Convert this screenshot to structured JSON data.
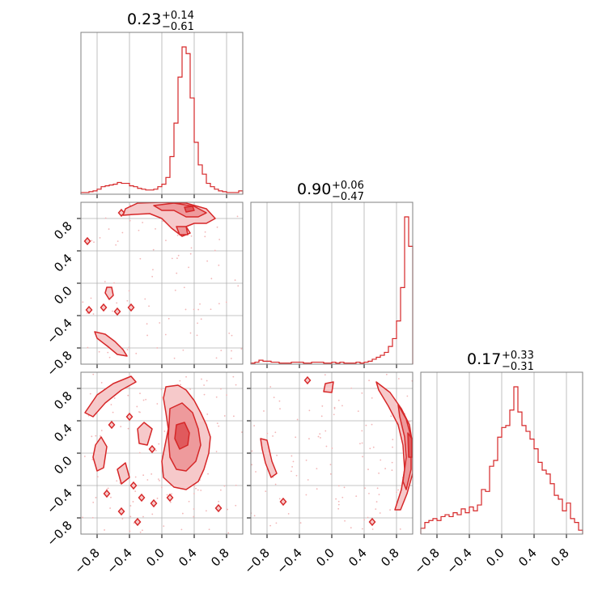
{
  "colors": {
    "line": "#d62728",
    "fill_outer": "#f6c9ca",
    "fill_mid": "#ee9a9c",
    "fill_inner": "#e05a5d",
    "scatter": "#f2b5b6",
    "grid": "#b0b0b0",
    "frame": "#808080"
  },
  "chart_data": {
    "type": "corner",
    "grid": true,
    "tick_labels": [
      "−0.8",
      "−0.4",
      "0.0",
      "0.4",
      "0.8"
    ],
    "tick_values": [
      -0.8,
      -0.4,
      0.0,
      0.4,
      0.8
    ],
    "range": [
      -1.0,
      1.0
    ],
    "titles": [
      {
        "value": "0.23",
        "upper": "+0.14",
        "lower": "−0.61"
      },
      {
        "value": "0.90",
        "upper": "+0.06",
        "lower": "−0.47"
      },
      {
        "value": "0.17",
        "upper": "+0.33",
        "lower": "−0.31"
      }
    ],
    "histograms": [
      {
        "name": "p0",
        "bins_from": -1.0,
        "bins_to": 1.0,
        "values": [
          2,
          2,
          3,
          4,
          6,
          9,
          10,
          11,
          12,
          14,
          13,
          13,
          10,
          9,
          7,
          6,
          5,
          5,
          6,
          9,
          12,
          20,
          45,
          85,
          140,
          176,
          168,
          115,
          62,
          35,
          24,
          13,
          9,
          6,
          4,
          3,
          2,
          2,
          2,
          4
        ]
      },
      {
        "name": "p1",
        "bins_from": -1.0,
        "bins_to": 1.0,
        "values": [
          1,
          2,
          4,
          3,
          3,
          2,
          2,
          1,
          1,
          1,
          2,
          2,
          2,
          1,
          1,
          2,
          2,
          2,
          1,
          1,
          2,
          1,
          2,
          1,
          1,
          1,
          2,
          1,
          2,
          3,
          5,
          7,
          9,
          12,
          18,
          26,
          44,
          78,
          150,
          120
        ]
      },
      {
        "name": "p2",
        "bins_from": -1.0,
        "bins_to": 1.0,
        "values": [
          3,
          6,
          7,
          8,
          7,
          9,
          10,
          9,
          11,
          10,
          13,
          11,
          14,
          12,
          15,
          23,
          22,
          35,
          38,
          50,
          55,
          56,
          64,
          76,
          63,
          56,
          53,
          49,
          44,
          37,
          33,
          31,
          26,
          20,
          18,
          12,
          16,
          8,
          6,
          2
        ]
      }
    ],
    "panels_2d": [
      {
        "x": "p0",
        "y": "p1",
        "outer_regions": [
          {
            "points": [
              [
                -0.45,
                0.92
              ],
              [
                -0.3,
                0.99
              ],
              [
                0.0,
                1.0
              ],
              [
                0.3,
                0.99
              ],
              [
                0.55,
                0.92
              ],
              [
                0.66,
                0.8
              ],
              [
                0.55,
                0.74
              ],
              [
                0.4,
                0.74
              ],
              [
                0.3,
                0.7
              ],
              [
                0.35,
                0.62
              ],
              [
                0.25,
                0.58
              ],
              [
                0.12,
                0.68
              ],
              [
                0.0,
                0.8
              ],
              [
                -0.15,
                0.86
              ],
              [
                -0.35,
                0.85
              ],
              [
                -0.48,
                0.84
              ]
            ]
          },
          {
            "points": [
              [
                -0.83,
                -0.6
              ],
              [
                -0.7,
                -0.63
              ],
              [
                -0.58,
                -0.72
              ],
              [
                -0.48,
                -0.82
              ],
              [
                -0.43,
                -0.9
              ],
              [
                -0.55,
                -0.88
              ],
              [
                -0.67,
                -0.78
              ],
              [
                -0.8,
                -0.68
              ]
            ]
          },
          {
            "points": [
              [
                -0.68,
                -0.05
              ],
              [
                -0.62,
                -0.05
              ],
              [
                -0.6,
                -0.15
              ],
              [
                -0.65,
                -0.2
              ],
              [
                -0.7,
                -0.12
              ]
            ]
          }
        ],
        "mid_regions": [
          {
            "points": [
              [
                -0.1,
                0.96
              ],
              [
                0.15,
                0.99
              ],
              [
                0.4,
                0.95
              ],
              [
                0.55,
                0.87
              ],
              [
                0.45,
                0.82
              ],
              [
                0.3,
                0.82
              ],
              [
                0.15,
                0.9
              ],
              [
                0.0,
                0.9
              ]
            ]
          },
          {
            "points": [
              [
                0.18,
                0.7
              ],
              [
                0.3,
                0.7
              ],
              [
                0.32,
                0.6
              ],
              [
                0.22,
                0.6
              ]
            ]
          }
        ],
        "inner_regions": [
          {
            "points": [
              [
                0.28,
                0.94
              ],
              [
                0.38,
                0.95
              ],
              [
                0.4,
                0.9
              ],
              [
                0.3,
                0.88
              ]
            ]
          }
        ],
        "small_contours": [
          [
            -0.92,
            0.52
          ],
          [
            -0.9,
            -0.33
          ],
          [
            -0.72,
            -0.3
          ],
          [
            -0.55,
            -0.35
          ],
          [
            -0.38,
            -0.3
          ],
          [
            -0.5,
            0.87
          ]
        ],
        "scatter_seed": 11,
        "scatter_count": 90
      },
      {
        "x": "p0",
        "y": "p2",
        "outer_regions": [
          {
            "points": [
              [
                0.05,
                0.82
              ],
              [
                0.2,
                0.84
              ],
              [
                0.3,
                0.78
              ],
              [
                0.4,
                0.65
              ],
              [
                0.48,
                0.5
              ],
              [
                0.55,
                0.35
              ],
              [
                0.6,
                0.2
              ],
              [
                0.58,
                0.0
              ],
              [
                0.52,
                -0.2
              ],
              [
                0.45,
                -0.35
              ],
              [
                0.3,
                -0.45
              ],
              [
                0.15,
                -0.42
              ],
              [
                0.02,
                -0.3
              ],
              [
                0.0,
                -0.1
              ],
              [
                0.04,
                0.1
              ],
              [
                0.08,
                0.3
              ],
              [
                0.05,
                0.5
              ],
              [
                0.02,
                0.68
              ]
            ]
          },
          {
            "points": [
              [
                -0.95,
                0.5
              ],
              [
                -0.8,
                0.72
              ],
              [
                -0.6,
                0.86
              ],
              [
                -0.38,
                0.95
              ],
              [
                -0.32,
                0.88
              ],
              [
                -0.5,
                0.78
              ],
              [
                -0.7,
                0.62
              ],
              [
                -0.85,
                0.45
              ]
            ]
          },
          {
            "points": [
              [
                -0.82,
                0.1
              ],
              [
                -0.75,
                0.2
              ],
              [
                -0.68,
                0.08
              ],
              [
                -0.72,
                -0.18
              ],
              [
                -0.8,
                -0.22
              ],
              [
                -0.85,
                -0.05
              ]
            ]
          },
          {
            "points": [
              [
                -0.3,
                0.3
              ],
              [
                -0.22,
                0.38
              ],
              [
                -0.12,
                0.3
              ],
              [
                -0.18,
                0.1
              ],
              [
                -0.28,
                0.12
              ]
            ]
          },
          {
            "points": [
              [
                -0.55,
                -0.2
              ],
              [
                -0.45,
                -0.12
              ],
              [
                -0.4,
                -0.3
              ],
              [
                -0.5,
                -0.38
              ]
            ]
          }
        ],
        "mid_regions": [
          {
            "points": [
              [
                0.1,
                0.55
              ],
              [
                0.25,
                0.62
              ],
              [
                0.38,
                0.5
              ],
              [
                0.45,
                0.3
              ],
              [
                0.48,
                0.1
              ],
              [
                0.42,
                -0.1
              ],
              [
                0.3,
                -0.22
              ],
              [
                0.18,
                -0.2
              ],
              [
                0.1,
                -0.05
              ],
              [
                0.08,
                0.2
              ]
            ]
          }
        ],
        "inner_regions": [
          {
            "points": [
              [
                0.18,
                0.35
              ],
              [
                0.28,
                0.38
              ],
              [
                0.34,
                0.25
              ],
              [
                0.32,
                0.1
              ],
              [
                0.22,
                0.05
              ],
              [
                0.16,
                0.18
              ]
            ]
          }
        ],
        "small_contours": [
          [
            -0.62,
            0.35
          ],
          [
            -0.4,
            0.45
          ],
          [
            -0.25,
            -0.55
          ],
          [
            -0.1,
            -0.62
          ],
          [
            -0.5,
            -0.72
          ],
          [
            -0.3,
            -0.85
          ],
          [
            0.7,
            -0.68
          ],
          [
            -0.12,
            0.05
          ],
          [
            -0.68,
            -0.5
          ],
          [
            -0.35,
            -0.4
          ],
          [
            0.1,
            -0.55
          ]
        ],
        "scatter_seed": 23,
        "scatter_count": 140
      },
      {
        "x": "p1",
        "y": "p2",
        "outer_regions": [
          {
            "points": [
              [
                0.55,
                0.88
              ],
              [
                0.72,
                0.75
              ],
              [
                0.86,
                0.55
              ],
              [
                0.96,
                0.35
              ],
              [
                1.0,
                0.1
              ],
              [
                1.0,
                -0.25
              ],
              [
                0.93,
                -0.5
              ],
              [
                0.85,
                -0.7
              ],
              [
                0.78,
                -0.7
              ],
              [
                0.86,
                -0.45
              ],
              [
                0.9,
                -0.2
              ],
              [
                0.88,
                0.1
              ],
              [
                0.82,
                0.35
              ],
              [
                0.7,
                0.58
              ],
              [
                0.58,
                0.78
              ]
            ]
          },
          {
            "points": [
              [
                -0.88,
                0.18
              ],
              [
                -0.8,
                0.16
              ],
              [
                -0.74,
                -0.1
              ],
              [
                -0.68,
                -0.25
              ],
              [
                -0.75,
                -0.3
              ],
              [
                -0.82,
                -0.12
              ],
              [
                -0.86,
                0.05
              ]
            ]
          },
          {
            "points": [
              [
                -0.08,
                0.86
              ],
              [
                0.02,
                0.88
              ],
              [
                0.0,
                0.75
              ],
              [
                -0.1,
                0.76
              ]
            ]
          }
        ],
        "mid_regions": [
          {
            "points": [
              [
                0.82,
                0.6
              ],
              [
                0.92,
                0.42
              ],
              [
                0.98,
                0.2
              ],
              [
                0.98,
                -0.2
              ],
              [
                0.92,
                -0.45
              ],
              [
                0.88,
                -0.35
              ],
              [
                0.92,
                -0.05
              ],
              [
                0.9,
                0.2
              ],
              [
                0.84,
                0.45
              ]
            ]
          }
        ],
        "inner_regions": [
          {
            "points": [
              [
                0.94,
                0.25
              ],
              [
                0.99,
                0.18
              ],
              [
                0.99,
                -0.05
              ],
              [
                0.95,
                -0.05
              ]
            ]
          }
        ],
        "small_contours": [
          [
            -0.3,
            0.9
          ],
          [
            -0.6,
            -0.6
          ],
          [
            0.5,
            -0.85
          ]
        ],
        "scatter_seed": 37,
        "scatter_count": 110
      }
    ]
  }
}
